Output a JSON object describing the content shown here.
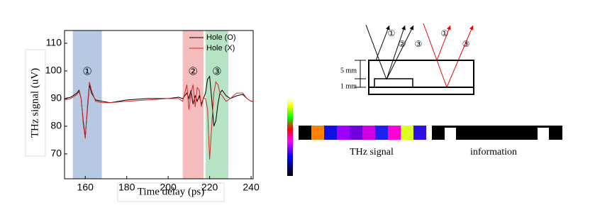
{
  "chart_data": {
    "type": "line",
    "xlabel": "Time delay (ps)",
    "ylabel": "THz signal (uV)",
    "xlim": [
      150,
      241
    ],
    "ylim": [
      61,
      114.6
    ],
    "xticks": [
      160,
      180,
      200,
      220,
      240
    ],
    "yticks": [
      70,
      80,
      90,
      100,
      110
    ],
    "legend": "upper right",
    "x": [
      150,
      153,
      156,
      157,
      158,
      159,
      160,
      161,
      162,
      163,
      165,
      168,
      172,
      180,
      190,
      200,
      205,
      207,
      208,
      209,
      210,
      211,
      212,
      213,
      214,
      215,
      216,
      217,
      218,
      219,
      220,
      221,
      222,
      223,
      224,
      225,
      226,
      228,
      230,
      233,
      236,
      238,
      240,
      241
    ],
    "series": [
      {
        "name": "Hole (O)",
        "color": "#000000",
        "values": [
          90,
          90.5,
          92,
          93,
          90,
          82,
          76,
          86,
          95,
          92,
          89.5,
          89,
          88.5,
          89.5,
          90,
          90,
          90.5,
          90,
          91,
          92,
          90,
          93,
          88,
          91,
          89,
          91,
          88,
          90,
          92,
          97,
          98,
          90,
          80,
          82,
          88,
          92,
          93,
          91,
          90,
          91,
          91.5,
          90,
          89,
          89
        ]
      },
      {
        "name": "Hole (X)",
        "color": "#d62728",
        "values": [
          89.5,
          90,
          91.5,
          92.5,
          90,
          81,
          75.5,
          87,
          96,
          93,
          89,
          88.5,
          88.5,
          89,
          89.5,
          90,
          90,
          89,
          92,
          95,
          86,
          92,
          95,
          87,
          94,
          93,
          87,
          90,
          90,
          86,
          68,
          80,
          92,
          96,
          95,
          92,
          91,
          89,
          90,
          92,
          92,
          90,
          89,
          89
        ]
      }
    ],
    "regions": [
      {
        "xlim": [
          154,
          168
        ],
        "color": "#b7c9e2",
        "label": "①"
      },
      {
        "xlim": [
          207,
          217
        ],
        "color": "#f4bcbc",
        "label": "②"
      },
      {
        "xlim": [
          218,
          229
        ],
        "color": "#b5e3c4",
        "label": "③"
      }
    ]
  },
  "diagram": {
    "ray_labels": [
      "①",
      "②",
      "③",
      "①",
      "③"
    ],
    "dim_labels": [
      "5 mm",
      "1 mm"
    ],
    "captions": [
      "THz signal",
      "information"
    ]
  }
}
